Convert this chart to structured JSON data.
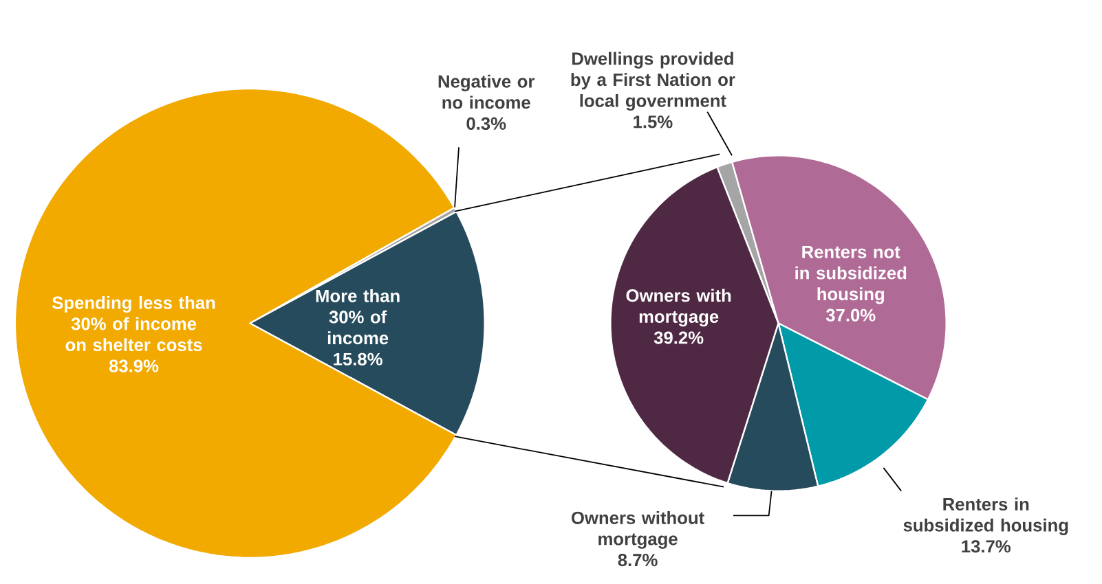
{
  "chart_data": [
    {
      "type": "pie",
      "categories": [
        "Negative or no income",
        "More than 30% of income",
        "Spending less than 30% of income on shelter costs"
      ],
      "values": [
        0.3,
        15.8,
        83.9
      ],
      "colors": [
        "#A5A5A5",
        "#264B5C",
        "#F2A900"
      ],
      "value_labels": [
        "0.3%",
        "15.8%",
        "83.9%"
      ]
    },
    {
      "type": "pie",
      "categories": [
        "Dwellings provided by a First Nation or local government",
        "Renters not in subsidized housing",
        "Renters in subsidized housing",
        "Owners without mortgage",
        "Owners with mortgage"
      ],
      "values": [
        1.5,
        37.0,
        13.7,
        8.7,
        39.2
      ],
      "colors": [
        "#A5A5A5",
        "#B06A96",
        "#009AA8",
        "#264B5C",
        "#4F2943"
      ],
      "value_labels": [
        "1.5%",
        "37.0%",
        "13.7%",
        "8.7%",
        "39.2%"
      ]
    }
  ]
}
